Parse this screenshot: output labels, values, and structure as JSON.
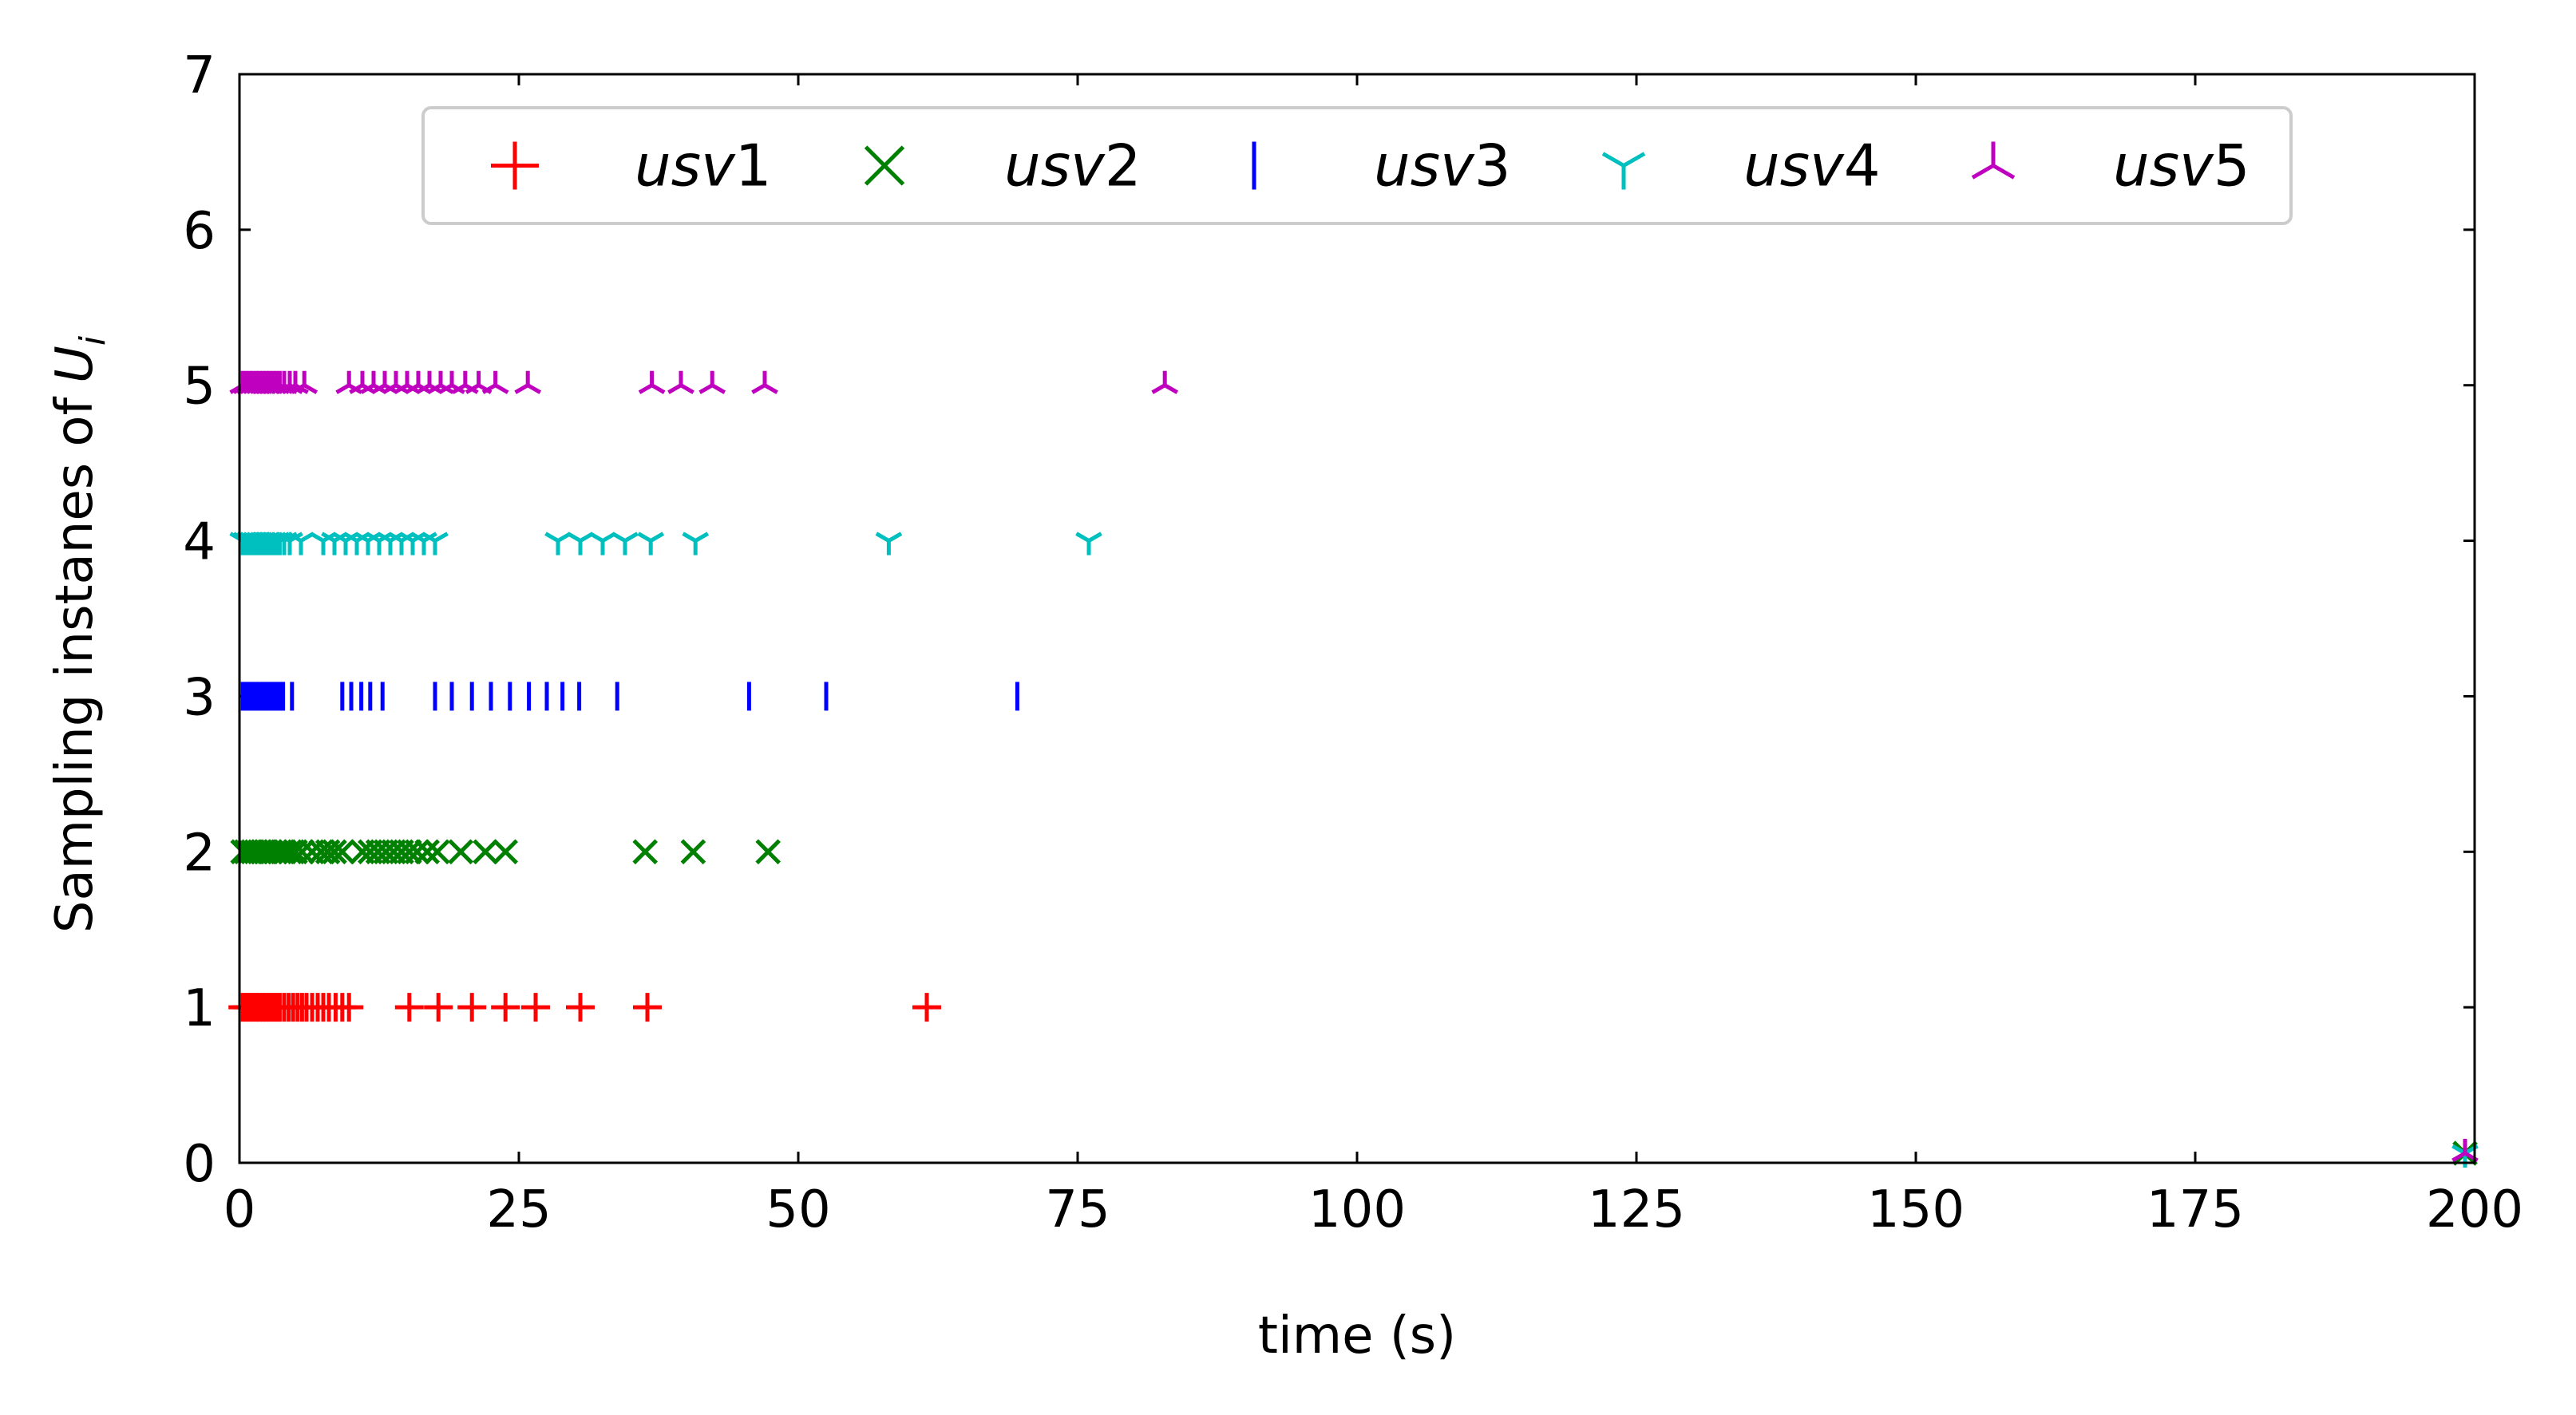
{
  "chart_data": {
    "type": "scatter",
    "xlabel": "time (s)",
    "ylabel_prefix": "Sampling instanes of",
    "ylabel_symbol": "U",
    "ylabel_subscript": "i",
    "xlim": [
      0,
      200
    ],
    "ylim": [
      0,
      7
    ],
    "xticks": [
      "0",
      "25",
      "50",
      "75",
      "100",
      "125",
      "150",
      "175",
      "200"
    ],
    "yticks": [
      "0",
      "1",
      "2",
      "3",
      "4",
      "5",
      "6",
      "7"
    ],
    "grid": false,
    "legend_position": "top-center",
    "series": [
      {
        "name_prefix": "usv",
        "name_number": "1",
        "color": "#ff0000",
        "marker": "plus-icon",
        "y": 1,
        "x": [
          0.3,
          0.6,
          0.9,
          1.2,
          1.5,
          1.8,
          2.1,
          2.4,
          2.7,
          3.0,
          3.3,
          3.6,
          4.0,
          4.4,
          4.8,
          5.2,
          5.6,
          6.0,
          6.5,
          7.0,
          7.5,
          8.0,
          8.6,
          9.2,
          9.8,
          15.2,
          17.8,
          20.8,
          23.8,
          26.5,
          30.5,
          36.5,
          61.5
        ]
      },
      {
        "name_prefix": "usv",
        "name_number": "2",
        "color": "#008000",
        "marker": "cross-icon",
        "y": 2,
        "x": [
          0.3,
          0.6,
          0.9,
          1.2,
          1.5,
          1.8,
          2.1,
          2.4,
          2.8,
          3.2,
          3.6,
          4.0,
          4.5,
          5.0,
          5.6,
          6.5,
          7.3,
          7.9,
          8.5,
          9.2,
          11.0,
          11.7,
          12.4,
          13.1,
          13.8,
          14.5,
          15.2,
          15.9,
          16.8,
          17.7,
          19.8,
          22.0,
          23.8,
          36.3,
          40.6,
          47.3
        ]
      },
      {
        "name_prefix": "usv",
        "name_number": "3",
        "color": "#0000ff",
        "marker": "vline-icon",
        "y": 3,
        "x": [
          0.3,
          0.6,
          0.9,
          1.2,
          1.5,
          1.8,
          2.1,
          2.4,
          2.7,
          3.0,
          3.3,
          3.6,
          3.9,
          4.7,
          9.2,
          10.0,
          10.9,
          11.7,
          12.8,
          17.5,
          19.0,
          20.8,
          22.5,
          24.2,
          25.9,
          27.5,
          28.9,
          30.4,
          33.8,
          45.6,
          52.5,
          69.6
        ]
      },
      {
        "name_prefix": "usv",
        "name_number": "4",
        "color": "#00bfbf",
        "marker": "tri-down-icon",
        "y": 4,
        "x": [
          0.3,
          0.6,
          0.9,
          1.2,
          1.5,
          1.8,
          2.1,
          2.4,
          2.7,
          3.0,
          3.3,
          3.6,
          4.0,
          4.5,
          5.5,
          7.5,
          8.5,
          9.5,
          10.5,
          11.5,
          12.5,
          13.5,
          14.5,
          15.5,
          16.5,
          17.5,
          28.5,
          30.5,
          32.5,
          34.5,
          36.8,
          40.8,
          58.1,
          76.0
        ]
      },
      {
        "name_prefix": "usv",
        "name_number": "5",
        "color": "#bf00bf",
        "marker": "tri-up-icon",
        "y": 5,
        "x": [
          0.3,
          0.6,
          0.9,
          1.2,
          1.5,
          1.8,
          2.1,
          2.4,
          2.7,
          3.0,
          3.3,
          3.6,
          4.0,
          4.5,
          5.0,
          5.8,
          9.8,
          11.0,
          12.0,
          13.0,
          14.0,
          15.0,
          16.0,
          17.0,
          18.0,
          19.0,
          20.2,
          21.4,
          22.9,
          25.8,
          36.9,
          39.5,
          42.3,
          47.0,
          82.8
        ]
      }
    ],
    "end_markers": [
      {
        "x": 200,
        "y": 0,
        "series": "usv2"
      },
      {
        "x": 200,
        "y": 0,
        "series": "usv4"
      },
      {
        "x": 200,
        "y": 0,
        "series": "usv5"
      }
    ]
  }
}
